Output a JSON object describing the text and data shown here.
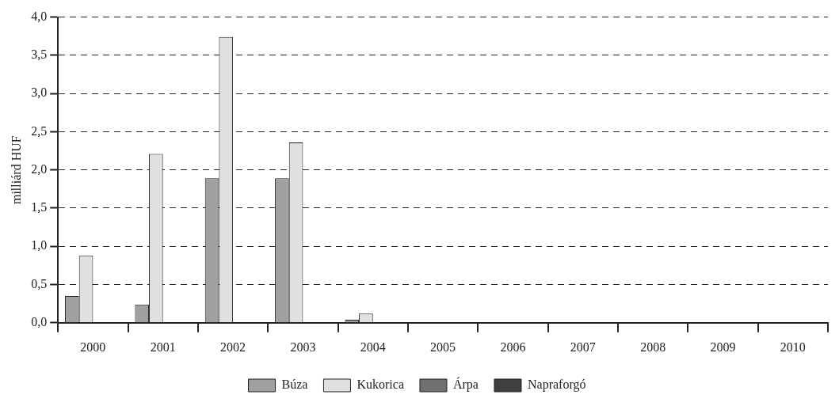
{
  "chart_data": {
    "type": "bar",
    "ylabel": "milliárd HUF",
    "categories": [
      "2000",
      "2001",
      "2002",
      "2003",
      "2004",
      "2005",
      "2006",
      "2007",
      "2008",
      "2009",
      "2010"
    ],
    "series": [
      {
        "name": "Búza",
        "color": "#a0a0a0",
        "values": [
          0.35,
          0.24,
          1.89,
          1.89,
          0.04,
          0,
          0,
          0,
          0,
          0,
          0
        ]
      },
      {
        "name": "Kukorica",
        "color": "#e0e0e0",
        "values": [
          0.88,
          2.21,
          3.74,
          2.36,
          0.12,
          0,
          0,
          0,
          0,
          0,
          0
        ]
      },
      {
        "name": "Árpa",
        "color": "#707070",
        "values": [
          0,
          0,
          0,
          0,
          0,
          0,
          0,
          0,
          0,
          0,
          0
        ]
      },
      {
        "name": "Napraforgó",
        "color": "#404040",
        "values": [
          0,
          0,
          0,
          0,
          0,
          0,
          0,
          0,
          0,
          0,
          0
        ]
      }
    ],
    "ylim": [
      0,
      4
    ],
    "yticks": [
      {
        "value": 0,
        "label": "0,0"
      },
      {
        "value": 0.5,
        "label": "0,5"
      },
      {
        "value": 1,
        "label": "1,0"
      },
      {
        "value": 1.5,
        "label": "1,5"
      },
      {
        "value": 2,
        "label": "2,0"
      },
      {
        "value": 2.5,
        "label": "2,5"
      },
      {
        "value": 3,
        "label": "3,0"
      },
      {
        "value": 3.5,
        "label": "3,5"
      },
      {
        "value": 4,
        "label": "4,0"
      }
    ],
    "grid": "y",
    "legend": "bottom"
  }
}
